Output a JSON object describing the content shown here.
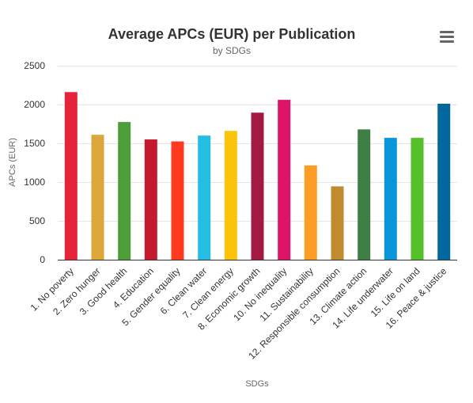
{
  "chart_data": {
    "type": "bar",
    "title": "Average APCs (EUR) per Publication",
    "subtitle": "by SDGs",
    "xlabel": "SDGs",
    "ylabel": "APCs (EUR)",
    "ylim": [
      0,
      2500
    ],
    "yticks": [
      "0",
      "500",
      "1000",
      "1500",
      "2000",
      "2500"
    ],
    "grid": true,
    "categories": [
      "1. No poverty",
      "2. Zero hunger",
      "3. Good health",
      "4. Education",
      "5. Gender equality",
      "6. Clean water",
      "7. Clean energy",
      "8. Economic growth",
      "10. No inequality",
      "11. Sustainability",
      "12. Responsible consumption",
      "13. Climate action",
      "14. Life underwater",
      "15. Life on land",
      "16. Peace & justice"
    ],
    "values": [
      2160,
      1610,
      1775,
      1550,
      1525,
      1600,
      1660,
      1895,
      2060,
      1215,
      945,
      1680,
      1570,
      1570,
      2010
    ],
    "colors": [
      "#e5243b",
      "#dda63a",
      "#4c9f38",
      "#c5192d",
      "#ff3a21",
      "#26bde2",
      "#fcc30b",
      "#a21942",
      "#dd1367",
      "#fd9d24",
      "#bf8b2e",
      "#3f7e44",
      "#0a97d9",
      "#56c02b",
      "#00689d"
    ]
  },
  "menu": {
    "icon": "hamburger-icon"
  }
}
